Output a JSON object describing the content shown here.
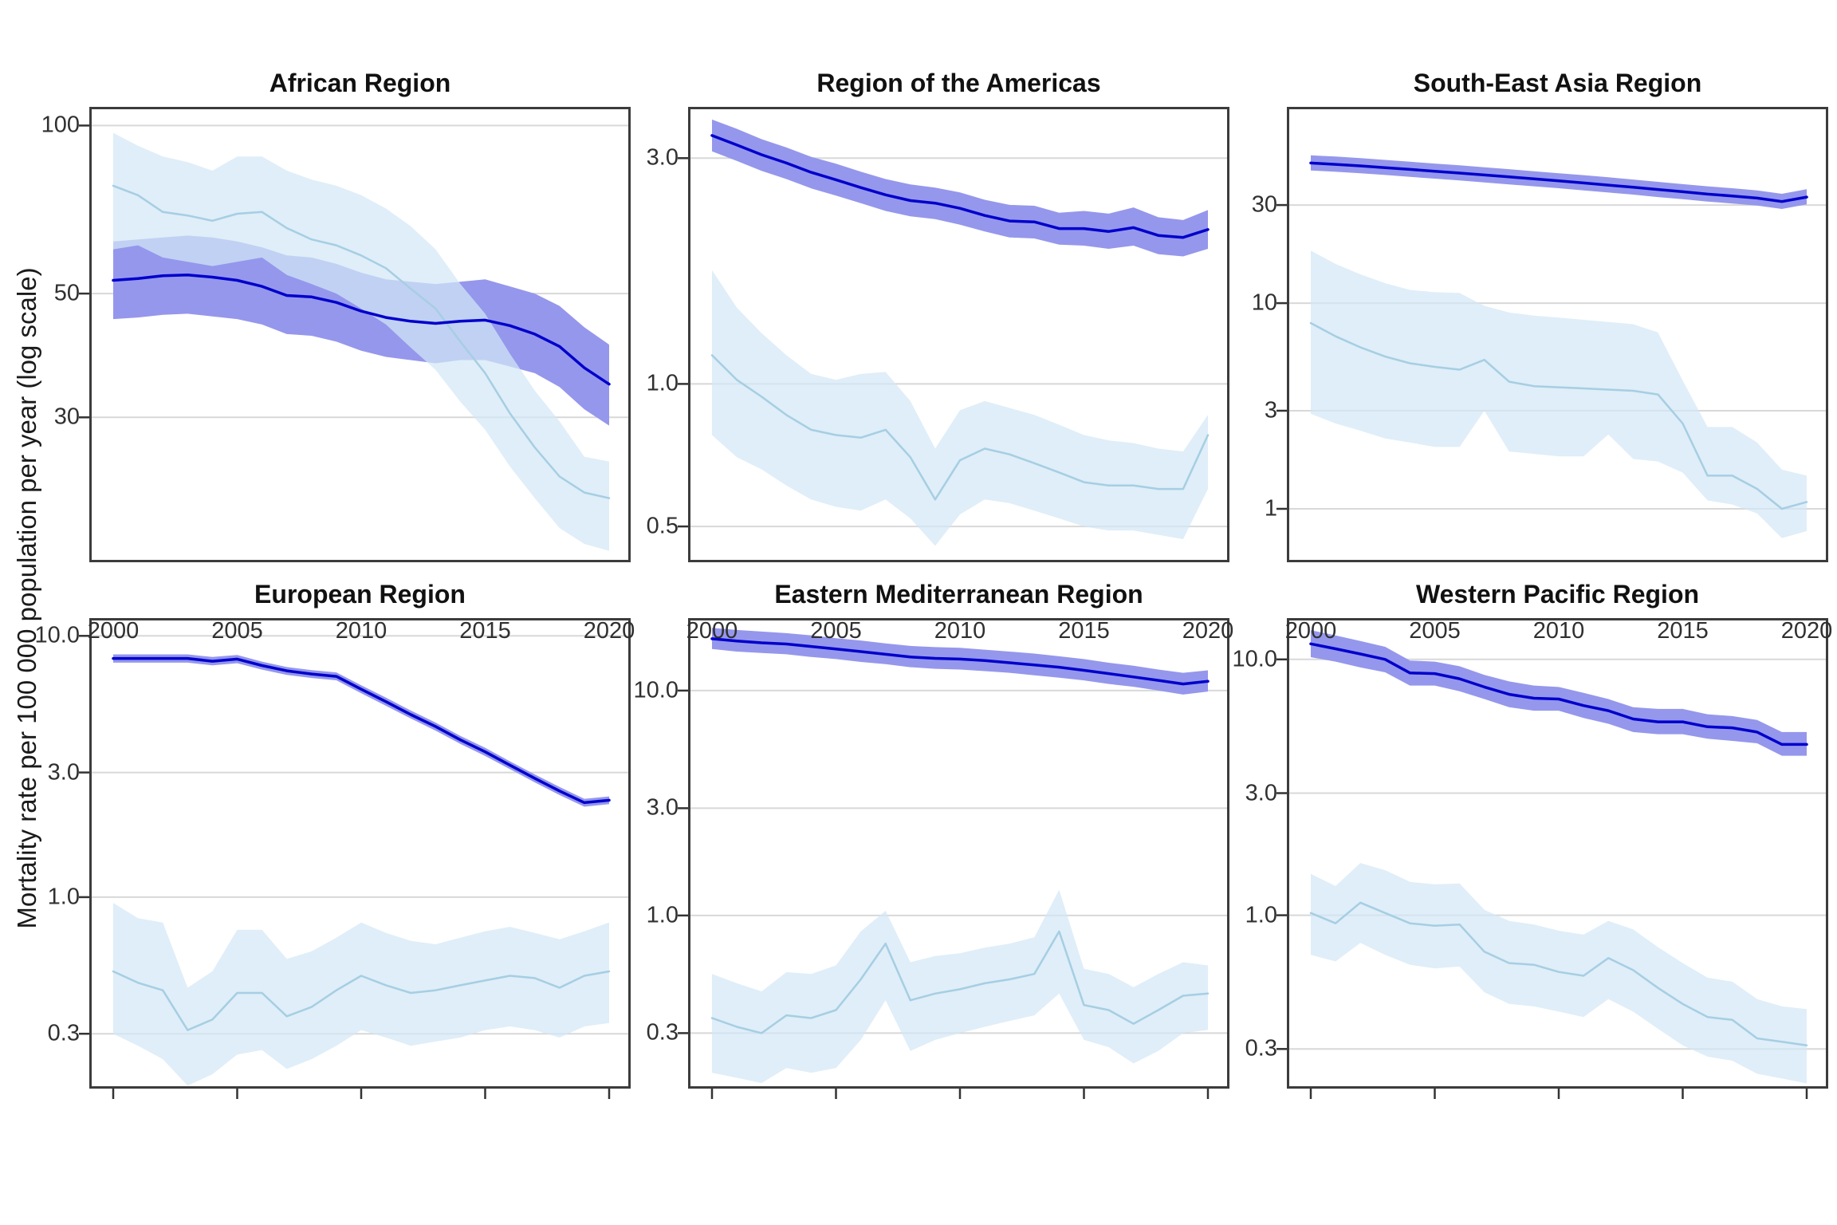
{
  "figure": {
    "y_axis_label": "Mortality rate per 100 000 population per year (log scale)",
    "x_ticks": [
      {
        "value": 2000,
        "label": "2000"
      },
      {
        "value": 2005,
        "label": "2005"
      },
      {
        "value": 2010,
        "label": "2010"
      },
      {
        "value": 2015,
        "label": "2015"
      },
      {
        "value": 2020,
        "label": "2020"
      }
    ],
    "years": [
      2000,
      2001,
      2002,
      2003,
      2004,
      2005,
      2006,
      2007,
      2008,
      2009,
      2010,
      2011,
      2012,
      2013,
      2014,
      2015,
      2016,
      2017,
      2018,
      2019,
      2020
    ],
    "layout_hints": {
      "grid": "major-y-only",
      "legend_position": "none",
      "x_axis_shared_bottom_row": true,
      "y_scale": "log10",
      "panels": "2 rows x 3 cols"
    },
    "colors": {
      "dark_line": "#0000CB",
      "dark_ribbon": "#9597EC",
      "light_line": "#A6CEE3",
      "light_ribbon": "#D2E7F5",
      "light_ribbon_alpha": 0.72,
      "gridline": "#D8D8D8",
      "panel_border": "#3C3C3C",
      "tick_mark": "#333333",
      "tick_text": "#303030"
    }
  },
  "chart_data": [
    {
      "type": "line",
      "title": "African Region",
      "ylim": [
        16.5,
        108
      ],
      "yticks": [
        {
          "value": 100,
          "label": "100"
        },
        {
          "value": 50,
          "label": "50"
        },
        {
          "value": 30,
          "label": "30"
        }
      ],
      "series": [
        {
          "name": "dark_blue_estimate",
          "values": [
            52.8,
            53.2,
            53.8,
            54,
            53.5,
            52.8,
            51.5,
            49.6,
            49.3,
            48.2,
            46.5,
            45.3,
            44.6,
            44.2,
            44.6,
            44.8,
            43.8,
            42.3,
            40.2,
            36.8,
            34.4
          ],
          "upper": [
            62,
            62.5,
            63,
            63.5,
            63,
            62,
            60.5,
            58.5,
            58,
            56.5,
            54.5,
            53,
            52.5,
            52,
            52.5,
            53,
            51.5,
            50,
            47.5,
            43.5,
            40.5
          ],
          "lower": [
            45,
            45.3,
            45.8,
            46,
            45.5,
            45,
            44,
            42.3,
            42,
            41,
            39.5,
            38.5,
            38,
            37.5,
            38,
            38,
            37,
            36,
            34,
            31,
            29
          ]
        },
        {
          "name": "light_blue_estimate",
          "values": [
            78,
            75,
            70,
            69,
            67.5,
            69.5,
            70,
            65.5,
            62.5,
            61,
            58.5,
            55.5,
            51,
            47,
            41,
            36,
            30.5,
            26.5,
            23.5,
            22,
            21.5
          ],
          "upper": [
            97,
            92,
            88,
            86,
            83,
            88,
            88,
            83,
            80,
            78,
            75,
            71,
            66,
            60,
            52,
            46,
            39,
            33.5,
            29.5,
            25.5,
            25
          ],
          "lower": [
            60,
            61,
            58,
            57,
            56,
            57,
            58,
            54,
            52,
            50,
            47,
            44,
            40,
            36.5,
            32,
            28.5,
            24.5,
            21.5,
            19,
            17.8,
            17.3
          ]
        }
      ]
    },
    {
      "type": "line",
      "title": "Region of the Americas",
      "ylim": [
        0.42,
        3.85
      ],
      "yticks": [
        {
          "value": 3,
          "label": "3.0"
        },
        {
          "value": 1,
          "label": "1.0"
        },
        {
          "value": 0.5,
          "label": "0.5"
        }
      ],
      "series": [
        {
          "name": "dark_blue_estimate",
          "values": [
            3.35,
            3.2,
            3.05,
            2.93,
            2.8,
            2.7,
            2.6,
            2.51,
            2.44,
            2.41,
            2.35,
            2.27,
            2.21,
            2.2,
            2.13,
            2.13,
            2.1,
            2.14,
            2.06,
            2.04,
            2.12
          ],
          "upper": [
            3.62,
            3.46,
            3.29,
            3.16,
            3.02,
            2.92,
            2.81,
            2.71,
            2.64,
            2.6,
            2.54,
            2.45,
            2.39,
            2.38,
            2.3,
            2.32,
            2.29,
            2.36,
            2.25,
            2.22,
            2.33
          ],
          "lower": [
            3.1,
            2.96,
            2.82,
            2.71,
            2.59,
            2.5,
            2.41,
            2.32,
            2.26,
            2.23,
            2.17,
            2.1,
            2.04,
            2.03,
            1.97,
            1.96,
            1.93,
            1.96,
            1.88,
            1.86,
            1.93
          ]
        },
        {
          "name": "light_blue_estimate",
          "values": [
            1.15,
            1.02,
            0.94,
            0.86,
            0.8,
            0.78,
            0.77,
            0.8,
            0.7,
            0.57,
            0.69,
            0.73,
            0.71,
            0.68,
            0.65,
            0.62,
            0.61,
            0.61,
            0.6,
            0.6,
            0.78
          ],
          "upper": [
            1.74,
            1.45,
            1.28,
            1.15,
            1.05,
            1.02,
            1.05,
            1.06,
            0.92,
            0.73,
            0.88,
            0.92,
            0.89,
            0.86,
            0.82,
            0.78,
            0.76,
            0.75,
            0.73,
            0.72,
            0.86
          ],
          "lower": [
            0.78,
            0.7,
            0.66,
            0.61,
            0.57,
            0.55,
            0.54,
            0.57,
            0.52,
            0.455,
            0.53,
            0.57,
            0.56,
            0.54,
            0.52,
            0.5,
            0.49,
            0.49,
            0.48,
            0.47,
            0.6
          ]
        }
      ]
    },
    {
      "type": "line",
      "title": "South-East Asia Region",
      "ylim": [
        0.55,
        90
      ],
      "yticks": [
        {
          "value": 30,
          "label": "30"
        },
        {
          "value": 10,
          "label": "10"
        },
        {
          "value": 3,
          "label": "3"
        },
        {
          "value": 1,
          "label": "1"
        }
      ],
      "series": [
        {
          "name": "dark_blue_estimate",
          "values": [
            48,
            47.3,
            46.5,
            45.6,
            44.7,
            43.8,
            42.9,
            42,
            41.1,
            40.2,
            39.3,
            38.4,
            37.5,
            36.6,
            35.7,
            34.8,
            33.9,
            33.2,
            32.4,
            31.2,
            32.8
          ],
          "upper": [
            52.3,
            51.6,
            50.7,
            49.7,
            48.7,
            47.7,
            46.8,
            45.8,
            44.8,
            43.8,
            42.8,
            41.9,
            40.9,
            39.9,
            38.9,
            37.9,
            37,
            36.2,
            35.3,
            34,
            35.8
          ],
          "lower": [
            44.2,
            43.5,
            42.8,
            42,
            41.1,
            40.3,
            39.5,
            38.6,
            37.8,
            37,
            36.2,
            35.3,
            34.5,
            33.7,
            32.8,
            32,
            31.2,
            30.5,
            29.8,
            28.7,
            30.2
          ]
        },
        {
          "name": "light_blue_estimate",
          "values": [
            8,
            6.9,
            6.1,
            5.5,
            5.1,
            4.9,
            4.75,
            5.3,
            4.15,
            3.95,
            3.9,
            3.85,
            3.8,
            3.75,
            3.6,
            2.6,
            1.45,
            1.45,
            1.25,
            1,
            1.08
          ],
          "upper": [
            18,
            15.5,
            13.8,
            12.5,
            11.6,
            11.3,
            11.2,
            9.7,
            9,
            8.7,
            8.5,
            8.3,
            8.1,
            7.9,
            7.2,
            4.2,
            2.5,
            2.5,
            2.1,
            1.55,
            1.45
          ],
          "lower": [
            2.9,
            2.6,
            2.4,
            2.2,
            2.1,
            2,
            2,
            3,
            1.9,
            1.85,
            1.8,
            1.8,
            2.3,
            1.75,
            1.7,
            1.5,
            1.1,
            1.05,
            0.95,
            0.72,
            0.78
          ]
        }
      ]
    },
    {
      "type": "line",
      "title": "European Region",
      "ylim": [
        0.185,
        11.7
      ],
      "yticks": [
        {
          "value": 10,
          "label": "10.0"
        },
        {
          "value": 3,
          "label": "3.0"
        },
        {
          "value": 1,
          "label": "1.0"
        },
        {
          "value": 0.3,
          "label": "0.3"
        }
      ],
      "series": [
        {
          "name": "dark_blue_estimate",
          "values": [
            8.2,
            8.2,
            8.2,
            8.2,
            8,
            8.15,
            7.7,
            7.35,
            7.15,
            7,
            6.25,
            5.6,
            5,
            4.5,
            4,
            3.6,
            3.2,
            2.85,
            2.55,
            2.3,
            2.35
          ],
          "upper": [
            8.5,
            8.5,
            8.5,
            8.5,
            8.3,
            8.45,
            7.97,
            7.6,
            7.4,
            7.25,
            6.47,
            5.8,
            5.18,
            4.66,
            4.14,
            3.73,
            3.31,
            2.95,
            2.64,
            2.38,
            2.43
          ],
          "lower": [
            7.9,
            7.9,
            7.9,
            7.9,
            7.72,
            7.86,
            7.43,
            7.09,
            6.9,
            6.76,
            6.03,
            5.4,
            4.83,
            4.34,
            3.86,
            3.47,
            3.09,
            2.75,
            2.46,
            2.22,
            2.27
          ]
        },
        {
          "name": "light_blue_estimate",
          "values": [
            0.52,
            0.47,
            0.44,
            0.31,
            0.34,
            0.43,
            0.43,
            0.35,
            0.38,
            0.44,
            0.5,
            0.46,
            0.43,
            0.44,
            0.46,
            0.48,
            0.5,
            0.49,
            0.45,
            0.5,
            0.52
          ],
          "upper": [
            0.95,
            0.83,
            0.8,
            0.45,
            0.52,
            0.75,
            0.75,
            0.58,
            0.62,
            0.7,
            0.8,
            0.73,
            0.68,
            0.66,
            0.7,
            0.74,
            0.77,
            0.73,
            0.69,
            0.74,
            0.8
          ],
          "lower": [
            0.3,
            0.27,
            0.24,
            0.19,
            0.21,
            0.25,
            0.26,
            0.22,
            0.24,
            0.27,
            0.31,
            0.29,
            0.27,
            0.28,
            0.29,
            0.31,
            0.32,
            0.31,
            0.29,
            0.32,
            0.33
          ]
        }
      ]
    },
    {
      "type": "line",
      "title": "Eastern Mediterranean Region",
      "ylim": [
        0.17,
        21
      ],
      "yticks": [
        {
          "value": 10,
          "label": "10.0"
        },
        {
          "value": 3,
          "label": "3.0"
        },
        {
          "value": 1,
          "label": "1.0"
        },
        {
          "value": 0.3,
          "label": "0.3"
        }
      ],
      "series": [
        {
          "name": "dark_blue_estimate",
          "values": [
            17,
            16.6,
            16.3,
            16.1,
            15.7,
            15.3,
            14.9,
            14.5,
            14.1,
            13.9,
            13.8,
            13.6,
            13.3,
            13,
            12.7,
            12.3,
            11.9,
            11.5,
            11.1,
            10.7,
            11
          ],
          "upper": [
            19,
            18.6,
            18.3,
            18,
            17.6,
            17.1,
            16.7,
            16.2,
            15.8,
            15.6,
            15.5,
            15.2,
            14.9,
            14.6,
            14.2,
            13.8,
            13.3,
            12.9,
            12.4,
            12,
            12.3
          ],
          "lower": [
            15.3,
            14.9,
            14.7,
            14.5,
            14.1,
            13.8,
            13.4,
            13.1,
            12.7,
            12.5,
            12.4,
            12.2,
            12,
            11.7,
            11.4,
            11.1,
            10.7,
            10.4,
            10,
            9.6,
            9.9
          ]
        },
        {
          "name": "light_blue_estimate",
          "values": [
            0.35,
            0.32,
            0.3,
            0.36,
            0.35,
            0.38,
            0.52,
            0.75,
            0.42,
            0.45,
            0.47,
            0.5,
            0.52,
            0.55,
            0.85,
            0.4,
            0.38,
            0.33,
            0.38,
            0.44,
            0.45
          ],
          "upper": [
            0.55,
            0.5,
            0.46,
            0.56,
            0.55,
            0.6,
            0.85,
            1.05,
            0.62,
            0.66,
            0.68,
            0.72,
            0.75,
            0.8,
            1.3,
            0.58,
            0.55,
            0.48,
            0.55,
            0.62,
            0.6
          ],
          "lower": [
            0.2,
            0.19,
            0.18,
            0.21,
            0.2,
            0.21,
            0.28,
            0.42,
            0.25,
            0.28,
            0.3,
            0.32,
            0.34,
            0.36,
            0.45,
            0.28,
            0.26,
            0.22,
            0.25,
            0.3,
            0.31
          ]
        }
      ]
    },
    {
      "type": "line",
      "title": "Western Pacific Region",
      "ylim": [
        0.21,
        14.5
      ],
      "yticks": [
        {
          "value": 10,
          "label": "10.0"
        },
        {
          "value": 3,
          "label": "3.0"
        },
        {
          "value": 1,
          "label": "1.0"
        },
        {
          "value": 0.3,
          "label": "0.3"
        }
      ],
      "series": [
        {
          "name": "dark_blue_estimate",
          "values": [
            11.5,
            11,
            10.5,
            10,
            8.85,
            8.8,
            8.4,
            7.8,
            7.3,
            7.05,
            7,
            6.6,
            6.3,
            5.85,
            5.7,
            5.7,
            5.45,
            5.4,
            5.2,
            4.65,
            4.65
          ],
          "upper": [
            13,
            12.4,
            11.8,
            11.2,
            9.9,
            9.8,
            9.4,
            8.7,
            8.2,
            7.9,
            7.8,
            7.4,
            7,
            6.5,
            6.4,
            6.4,
            6.1,
            6,
            5.8,
            5.2,
            5.2
          ],
          "lower": [
            10.2,
            9.8,
            9.3,
            8.9,
            7.9,
            7.9,
            7.5,
            7,
            6.5,
            6.3,
            6.3,
            5.9,
            5.6,
            5.2,
            5.1,
            5.1,
            4.9,
            4.8,
            4.7,
            4.2,
            4.2
          ]
        },
        {
          "name": "light_blue_estimate",
          "values": [
            1.02,
            0.93,
            1.12,
            1.02,
            0.93,
            0.91,
            0.92,
            0.72,
            0.65,
            0.64,
            0.6,
            0.58,
            0.68,
            0.61,
            0.52,
            0.45,
            0.4,
            0.39,
            0.33,
            0.32,
            0.31
          ],
          "upper": [
            1.45,
            1.3,
            1.6,
            1.5,
            1.35,
            1.32,
            1.33,
            1.05,
            0.95,
            0.92,
            0.87,
            0.84,
            0.95,
            0.88,
            0.75,
            0.65,
            0.57,
            0.55,
            0.47,
            0.44,
            0.43
          ],
          "lower": [
            0.7,
            0.66,
            0.78,
            0.7,
            0.64,
            0.62,
            0.63,
            0.5,
            0.45,
            0.44,
            0.42,
            0.4,
            0.47,
            0.42,
            0.36,
            0.31,
            0.28,
            0.27,
            0.24,
            0.23,
            0.22
          ]
        }
      ]
    }
  ]
}
